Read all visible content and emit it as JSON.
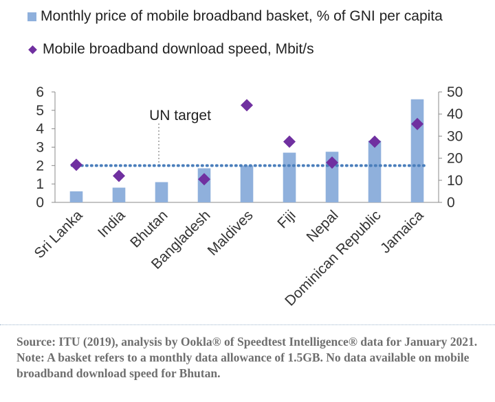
{
  "chart_data": {
    "type": "bar",
    "categories": [
      "Sri Lanka",
      "India",
      "Bhutan",
      "Bangladesh",
      "Maldives",
      "Fiji",
      "Nepal",
      "Dominican Republic",
      "Jamaica"
    ],
    "series": [
      {
        "name": "Monthly price of mobile broadband basket, % of GNI per capita",
        "type": "bar",
        "axis": "left",
        "color": "#8fb0dc",
        "values": [
          0.6,
          0.8,
          1.1,
          1.85,
          2.0,
          2.7,
          2.75,
          3.35,
          5.6
        ]
      },
      {
        "name": "Mobile broadband download speed, Mbit/s",
        "type": "scatter",
        "axis": "right",
        "color": "#7030a0",
        "values": [
          17,
          12,
          null,
          10.5,
          44,
          27.5,
          18,
          27.5,
          35.5
        ]
      }
    ],
    "target_line": {
      "label": "UN target",
      "value": 2,
      "axis": "left",
      "color": "#4a7ebb"
    },
    "y_left": {
      "min": 0,
      "max": 6,
      "ticks": [
        "0",
        "1",
        "2",
        "3",
        "4",
        "5",
        "6"
      ]
    },
    "y_right": {
      "min": 0,
      "max": 50,
      "ticks": [
        "0",
        "10",
        "20",
        "30",
        "40",
        "50"
      ]
    },
    "legend_position": "top",
    "grid": false
  },
  "notes": {
    "source": "Source: ITU (2019), analysis by Ookla® of Speedtest Intelligence® data for January 2021.",
    "note": "Note: A basket refers to a monthly data allowance of 1.5GB. No data available on mobile broadband download speed for Bhutan."
  }
}
